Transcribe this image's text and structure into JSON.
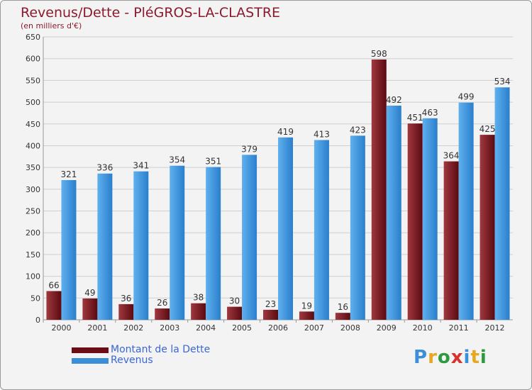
{
  "title": "Revenus/Dette - PléGROS-LA-CLASTRE",
  "subtitle": "(en milliers d'€)",
  "logo_text": "Proxiti",
  "colors": {
    "dette": "#6b0d15",
    "revenus": "#3a8fd8",
    "text": "#8b1a2c",
    "legend_text": "#3a66d6"
  },
  "chart_data": {
    "type": "bar",
    "categories": [
      "2000",
      "2001",
      "2002",
      "2003",
      "2004",
      "2005",
      "2006",
      "2007",
      "2008",
      "2009",
      "2010",
      "2011",
      "2012"
    ],
    "series": [
      {
        "name": "Montant de la Dette",
        "values": [
          66,
          49,
          36,
          26,
          38,
          30,
          23,
          19,
          16,
          598,
          451,
          364,
          425
        ]
      },
      {
        "name": "Revenus",
        "values": [
          321,
          336,
          341,
          354,
          351,
          379,
          419,
          413,
          423,
          492,
          463,
          499,
          534
        ]
      }
    ],
    "ylim": [
      0,
      650
    ],
    "yticks": [
      0,
      50,
      100,
      150,
      200,
      250,
      300,
      350,
      400,
      450,
      500,
      550,
      600,
      650
    ],
    "grid": true,
    "legend_position": "bottom-left"
  }
}
